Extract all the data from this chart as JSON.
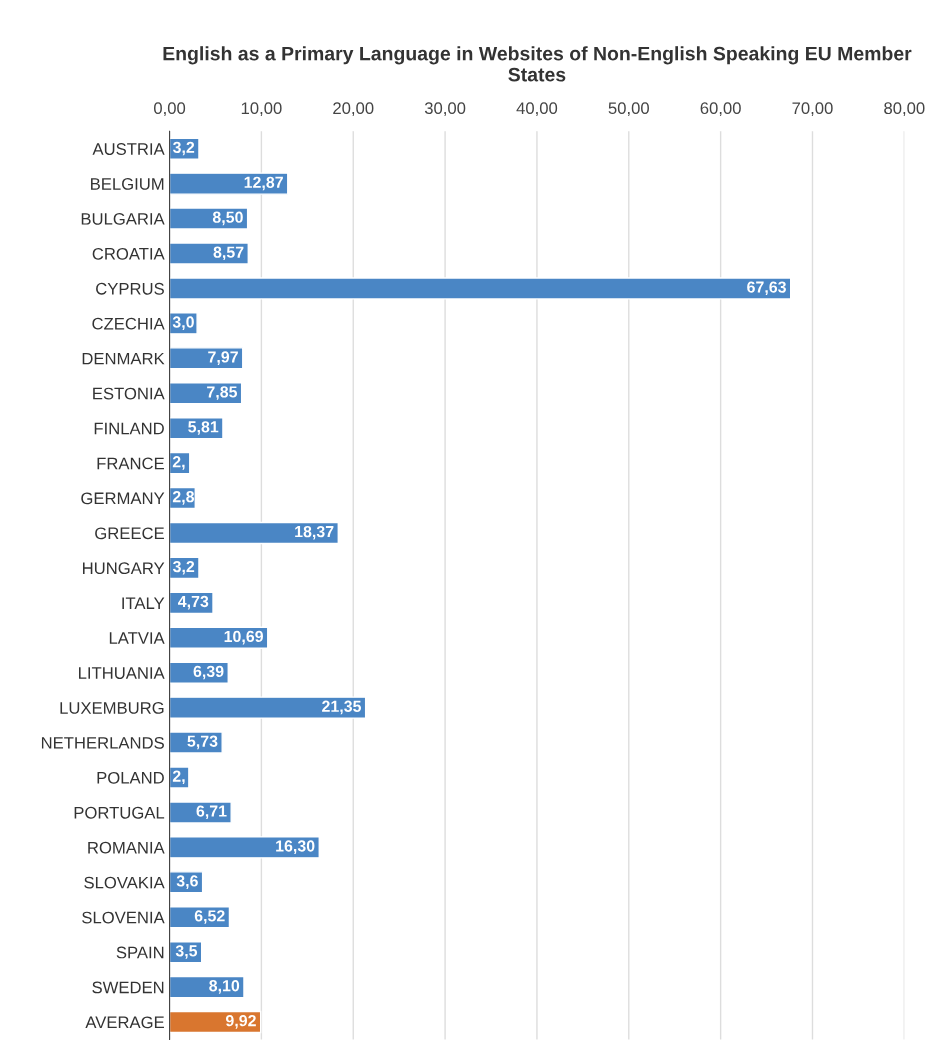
{
  "chart_data": {
    "type": "bar",
    "orientation": "horizontal",
    "title": "English as a Primary Language in Websites of Non-English Speaking EU Member States",
    "categories": [
      "AUSTRIA",
      "BELGIUM",
      "BULGARIA",
      "CROATIA",
      "CYPRUS",
      "CZECHIA",
      "DENMARK",
      "ESTONIA",
      "FINLAND",
      "FRANCE",
      "GERMANY",
      "GREECE",
      "HUNGARY",
      "ITALY",
      "LATVIA",
      "LITHUANIA",
      "LUXEMBURG",
      "NETHERLANDS",
      "POLAND",
      "PORTUGAL",
      "ROMANIA",
      "SLOVAKIA",
      "SLOVENIA",
      "SPAIN",
      "SWEDEN",
      "AVERAGE"
    ],
    "values": [
      3.2,
      12.87,
      8.5,
      8.57,
      67.63,
      3.0,
      7.97,
      7.85,
      5.81,
      2.2,
      2.8,
      18.37,
      3.2,
      4.73,
      10.69,
      6.39,
      21.35,
      5.73,
      2.1,
      6.71,
      16.3,
      3.6,
      6.52,
      3.5,
      8.1,
      9.92
    ],
    "value_labels": [
      "3,2",
      "12,87",
      "8,50",
      "8,57",
      "67,63",
      "3,0",
      "7,97",
      "7,85",
      "5,81",
      "2,",
      "2,8",
      "18,37",
      "3,2",
      "4,73",
      "10,69",
      "6,39",
      "21,35",
      "5,73",
      "2,",
      "6,71",
      "16,30",
      "3,6",
      "6,52",
      "3,5",
      "8,10",
      "9,92"
    ],
    "colors": [
      "#4a86c5",
      "#4a86c5",
      "#4a86c5",
      "#4a86c5",
      "#4a86c5",
      "#4a86c5",
      "#4a86c5",
      "#4a86c5",
      "#4a86c5",
      "#4a86c5",
      "#4a86c5",
      "#4a86c5",
      "#4a86c5",
      "#4a86c5",
      "#4a86c5",
      "#4a86c5",
      "#4a86c5",
      "#4a86c5",
      "#4a86c5",
      "#4a86c5",
      "#4a86c5",
      "#4a86c5",
      "#4a86c5",
      "#4a86c5",
      "#4a86c5",
      "#d9762f"
    ],
    "xlim": [
      0,
      80
    ],
    "xticks": [
      {
        "value": 0,
        "label": "0,00"
      },
      {
        "value": 10,
        "label": "10,00"
      },
      {
        "value": 20,
        "label": "20,00"
      },
      {
        "value": 30,
        "label": "30,00"
      },
      {
        "value": 40,
        "label": "40,00"
      },
      {
        "value": 50,
        "label": "50,00"
      },
      {
        "value": 60,
        "label": "60,00"
      },
      {
        "value": 70,
        "label": "70,00"
      },
      {
        "value": 80,
        "label": "80,00"
      }
    ],
    "grid": "x",
    "legend": false
  }
}
